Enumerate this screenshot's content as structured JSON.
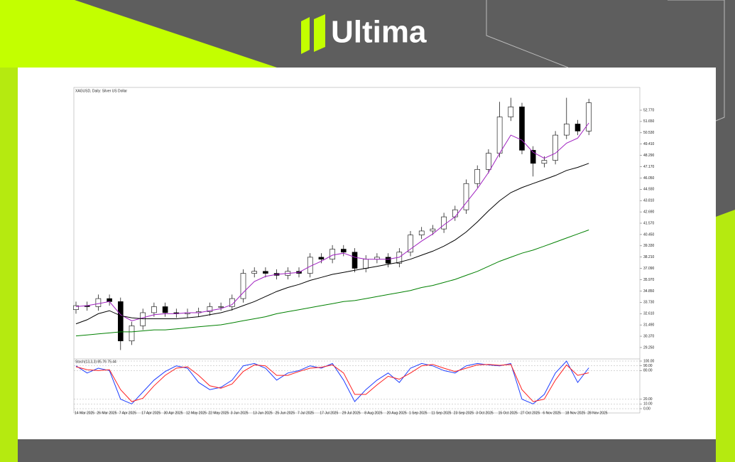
{
  "header": {
    "brand": "Ultima"
  },
  "chart_data": [
    {
      "type": "candlestick",
      "title": "XAGUSD, Daily:  Silver US Dollar",
      "categories": [
        "14 Mar 2025",
        null,
        "26 Mar 2025",
        null,
        "7 Apr 2025",
        null,
        "17 Apr 2025",
        null,
        "30 Apr 2025",
        null,
        "12 May 2025",
        null,
        "22 May 2025",
        null,
        "3 Jun 2025",
        null,
        "13 Jun 2025",
        null,
        "25 Jun 2025",
        null,
        "7 Jul 2025",
        null,
        "17 Jul 2025",
        null,
        "29 Jul 2025",
        null,
        "8 Aug 2025",
        null,
        "20 Aug 2025",
        null,
        "1 Sep 2025",
        null,
        "11 Sep 2025",
        null,
        "23 Sep 2025",
        null,
        "3 Oct 2025",
        null,
        "15 Oct 2025",
        null,
        "27 Oct 2025",
        null,
        "6 Nov 2025",
        null,
        "18 Nov 2025",
        null,
        "28 Nov 2025"
      ],
      "open": [
        33.0,
        33.4,
        33.3,
        34.1,
        33.8,
        29.9,
        31.4,
        32.7,
        33.3,
        32.7,
        32.6,
        32.7,
        32.8,
        33.3,
        33.3,
        34.1,
        36.6,
        36.8,
        36.6,
        36.4,
        36.8,
        36.6,
        38.2,
        38.0,
        39.0,
        38.7,
        37.1,
        38.0,
        38.2,
        37.6,
        38.7,
        40.4,
        40.8,
        41.0,
        42.2,
        42.9,
        45.5,
        46.9,
        48.5,
        52.1,
        53.1,
        48.8,
        47.5,
        47.8,
        50.3,
        51.4,
        50.7
      ],
      "high": [
        33.8,
        33.8,
        34.5,
        34.5,
        34.2,
        31.8,
        33.1,
        33.7,
        33.7,
        33.1,
        33.1,
        33.2,
        33.7,
        33.7,
        34.5,
        37.0,
        37.2,
        37.2,
        37.0,
        37.2,
        37.2,
        38.6,
        38.6,
        39.4,
        39.4,
        39.1,
        38.4,
        38.6,
        38.6,
        39.1,
        40.8,
        41.2,
        41.4,
        42.6,
        43.3,
        45.9,
        47.3,
        48.9,
        53.6,
        54.0,
        53.5,
        49.2,
        48.2,
        50.7,
        54.0,
        51.8,
        53.9
      ],
      "low": [
        32.6,
        32.9,
        32.9,
        33.4,
        29.0,
        29.5,
        31.0,
        32.3,
        32.3,
        32.2,
        32.2,
        32.3,
        32.4,
        32.9,
        32.9,
        33.7,
        36.2,
        36.2,
        36.0,
        36.0,
        36.2,
        36.2,
        37.6,
        37.6,
        38.3,
        36.7,
        36.7,
        37.6,
        37.2,
        37.2,
        38.3,
        40.0,
        40.4,
        40.6,
        41.8,
        42.5,
        45.1,
        46.5,
        48.1,
        51.7,
        48.4,
        46.2,
        47.1,
        47.4,
        49.9,
        50.3,
        50.3
      ],
      "close": [
        33.4,
        33.3,
        34.1,
        33.8,
        29.9,
        31.4,
        32.7,
        33.3,
        32.7,
        32.6,
        32.7,
        32.8,
        33.3,
        33.3,
        34.1,
        36.6,
        36.8,
        36.6,
        36.4,
        36.8,
        36.6,
        38.2,
        38.0,
        39.0,
        38.7,
        37.1,
        38.0,
        38.2,
        37.6,
        38.7,
        40.4,
        40.8,
        41.0,
        42.2,
        42.9,
        45.5,
        46.9,
        48.5,
        52.1,
        53.1,
        48.8,
        47.5,
        47.8,
        50.3,
        51.4,
        50.7,
        53.5
      ],
      "up_color": "#ffffff",
      "down_color": "#000000",
      "series": [
        {
          "color": "#a020c0",
          "values": [
            33.3,
            33.4,
            33.6,
            33.8,
            32.5,
            31.9,
            32.2,
            32.5,
            32.6,
            32.6,
            32.7,
            32.7,
            32.9,
            33.1,
            33.5,
            34.7,
            35.8,
            36.3,
            36.5,
            36.6,
            36.7,
            37.3,
            37.8,
            38.4,
            38.6,
            38.2,
            38.0,
            38.0,
            38.0,
            38.2,
            39.0,
            39.8,
            40.5,
            41.4,
            42.2,
            43.6,
            45.0,
            46.6,
            48.5,
            50.3,
            49.8,
            48.6,
            48.0,
            48.5,
            49.5,
            50.0,
            51.5
          ]
        },
        {
          "color": "#000000",
          "values": [
            31.6,
            32.0,
            32.6,
            32.9,
            32.4,
            32.2,
            32.1,
            32.1,
            32.1,
            32.1,
            32.2,
            32.3,
            32.5,
            32.7,
            33.0,
            33.4,
            33.8,
            34.3,
            34.8,
            35.2,
            35.5,
            35.9,
            36.2,
            36.5,
            36.7,
            36.9,
            37.1,
            37.3,
            37.5,
            37.7,
            38.0,
            38.4,
            38.8,
            39.3,
            39.9,
            40.7,
            41.7,
            42.8,
            43.8,
            44.6,
            45.1,
            45.5,
            45.9,
            46.3,
            46.8,
            47.1,
            47.5
          ]
        },
        {
          "color": "#008000",
          "values": [
            30.4,
            30.5,
            30.6,
            30.7,
            30.8,
            30.8,
            30.9,
            31.0,
            31.0,
            31.1,
            31.2,
            31.3,
            31.4,
            31.5,
            31.7,
            31.9,
            32.1,
            32.3,
            32.6,
            32.8,
            33.0,
            33.2,
            33.4,
            33.6,
            33.8,
            33.9,
            34.1,
            34.3,
            34.5,
            34.7,
            34.9,
            35.2,
            35.4,
            35.7,
            36.0,
            36.4,
            36.8,
            37.3,
            37.8,
            38.2,
            38.6,
            38.9,
            39.3,
            39.7,
            40.1,
            40.5,
            40.9
          ]
        }
      ],
      "ylim": [
        28.26,
        54.18
      ],
      "yticks": [
        {
          "value": 29.25,
          "label": "29.250"
        },
        {
          "value": 30.37,
          "label": "30.370"
        },
        {
          "value": 31.49,
          "label": "31.490"
        },
        {
          "value": 32.61,
          "label": "32.610"
        },
        {
          "value": 33.73,
          "label": "33.730"
        },
        {
          "value": 34.85,
          "label": "34.850"
        },
        {
          "value": 35.97,
          "label": "35.970"
        },
        {
          "value": 37.09,
          "label": "37.090"
        },
        {
          "value": 38.21,
          "label": "38.210"
        },
        {
          "value": 39.33,
          "label": "39.330"
        },
        {
          "value": 40.45,
          "label": "40.450"
        },
        {
          "value": 41.57,
          "label": "41.570"
        },
        {
          "value": 42.69,
          "label": "42.690"
        },
        {
          "value": 43.81,
          "label": "43.810"
        },
        {
          "value": 44.93,
          "label": "44.930"
        },
        {
          "value": 46.05,
          "label": "46.050"
        },
        {
          "value": 47.17,
          "label": "47.170"
        },
        {
          "value": 48.29,
          "label": "48.290"
        },
        {
          "value": 49.41,
          "label": "49.410"
        },
        {
          "value": 50.53,
          "label": "50.530"
        },
        {
          "value": 51.65,
          "label": "51.650"
        },
        {
          "value": 52.77,
          "label": "52.770"
        }
      ]
    },
    {
      "type": "line",
      "title": "Stoch(13,3,3) 85.76 75.44",
      "series": [
        {
          "color": "#1f3fff",
          "values": [
            90,
            75,
            85,
            80,
            20,
            10,
            35,
            60,
            78,
            90,
            85,
            55,
            40,
            45,
            60,
            90,
            95,
            85,
            60,
            75,
            80,
            90,
            85,
            95,
            60,
            15,
            40,
            60,
            75,
            55,
            85,
            95,
            90,
            80,
            75,
            90,
            95,
            92,
            90,
            95,
            20,
            10,
            30,
            75,
            100,
            55,
            85.76
          ]
        },
        {
          "color": "#ff2020",
          "values": [
            88,
            82,
            80,
            82,
            40,
            15,
            22,
            48,
            70,
            85,
            88,
            70,
            48,
            43,
            52,
            78,
            92,
            90,
            70,
            70,
            78,
            85,
            87,
            92,
            75,
            30,
            30,
            50,
            68,
            62,
            75,
            90,
            93,
            85,
            78,
            85,
            92,
            93,
            91,
            93,
            40,
            15,
            20,
            60,
            92,
            70,
            75.44
          ]
        }
      ],
      "ylim": [
        0,
        100
      ],
      "yticks": [
        {
          "value": 0,
          "label": "0.00"
        },
        {
          "value": 10,
          "label": "10.00"
        },
        {
          "value": 20,
          "label": "20.00"
        },
        {
          "value": 80,
          "label": "80.00"
        },
        {
          "value": 90,
          "label": "90.00"
        },
        {
          "value": 100,
          "label": "100.00"
        }
      ]
    }
  ]
}
